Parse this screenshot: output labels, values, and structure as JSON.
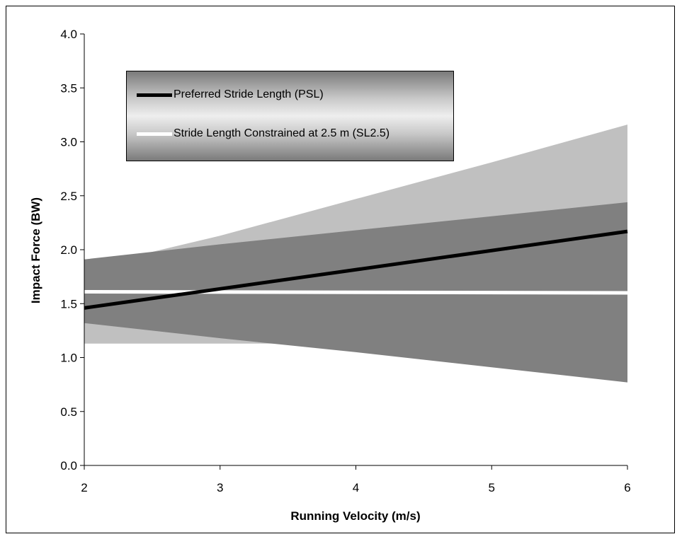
{
  "chart_data": {
    "type": "line",
    "title": "",
    "xlabel": "Running Velocity (m/s)",
    "ylabel": "Impact Force (BW)",
    "xlim": [
      2,
      6
    ],
    "ylim": [
      0,
      4
    ],
    "x_ticks": [
      "2",
      "3",
      "4",
      "5",
      "6"
    ],
    "y_ticks": [
      "0.0",
      "0.5",
      "1.0",
      "1.5",
      "2.0",
      "2.5",
      "3.0",
      "3.5",
      "4.0"
    ],
    "grid": false,
    "legend_position": "top-left",
    "colors": {
      "psl_line": "#000000",
      "sl25_line": "#ffffff",
      "sl25_band": "#c0c0c0",
      "psl_band": "#808080",
      "axis": "#000000"
    },
    "series": [
      {
        "name": "Preferred Stride Length (PSL)",
        "color": "#000000",
        "x": [
          2,
          6
        ],
        "y": [
          1.46,
          2.17
        ],
        "band": {
          "x": [
            2,
            3,
            4,
            5,
            6
          ],
          "upper": [
            1.91,
            2.05,
            2.18,
            2.31,
            2.44
          ],
          "lower": [
            1.32,
            1.18,
            1.05,
            0.91,
            0.77
          ]
        }
      },
      {
        "name": "Stride Length Constrained at 2.5 m (SL2.5)",
        "color": "#ffffff",
        "x": [
          2,
          6
        ],
        "y": [
          1.61,
          1.6
        ],
        "band": {
          "x": [
            2,
            2.4,
            3,
            4,
            5,
            6
          ],
          "upper": [
            1.91,
            1.95,
            2.13,
            2.47,
            2.81,
            3.16
          ],
          "lower": [
            1.13,
            1.13,
            1.13,
            1.13,
            1.13,
            1.13
          ]
        }
      }
    ]
  }
}
